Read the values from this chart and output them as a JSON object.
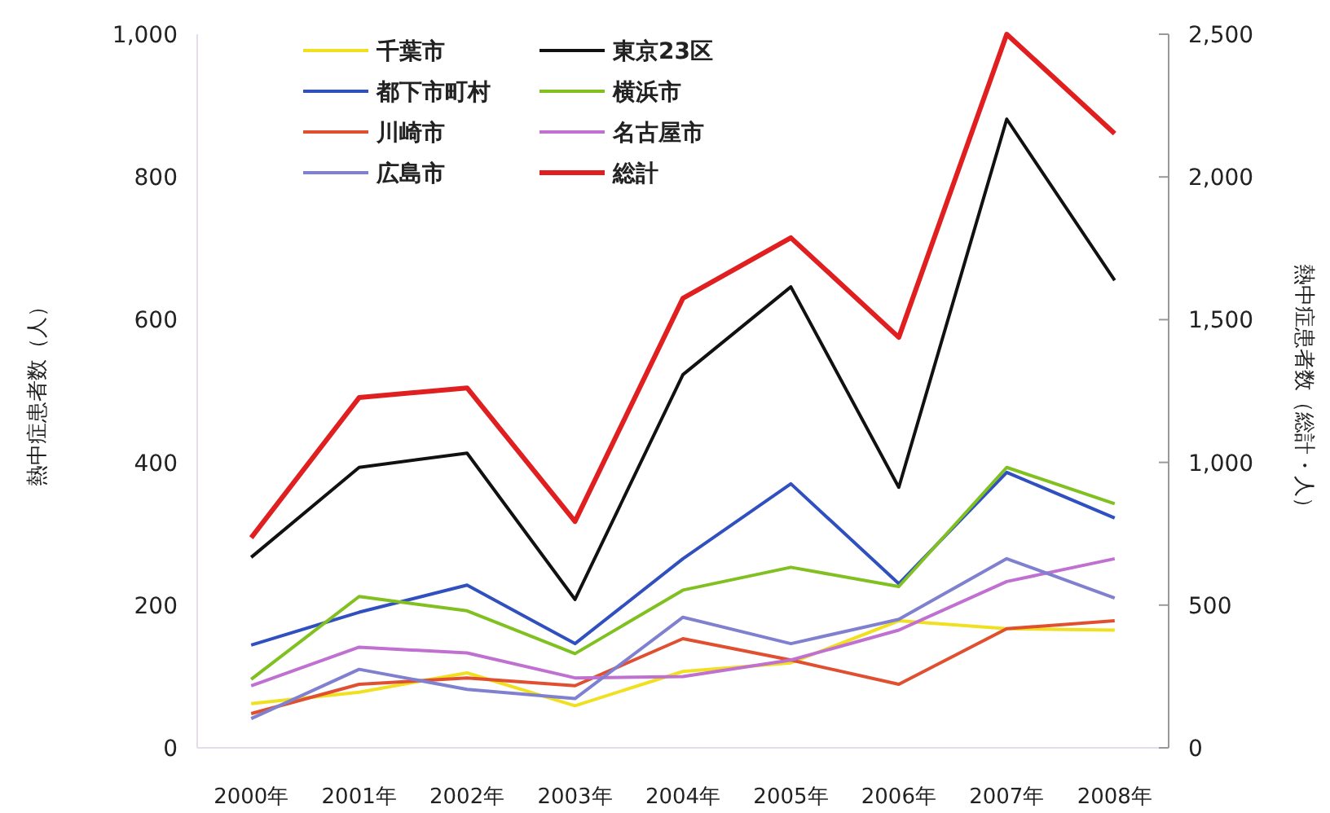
{
  "chart_data": {
    "type": "line",
    "categories": [
      "2000年",
      "2001年",
      "2002年",
      "2003年",
      "2004年",
      "2005年",
      "2006年",
      "2007年",
      "2008年"
    ],
    "ylabel": "熱中症患者数（人）",
    "y2label": "熱中症患者数（総計・人）",
    "ylim": [
      0,
      1000
    ],
    "yticks": [
      {
        "value": 0,
        "label": "0"
      },
      {
        "value": 200,
        "label": "200"
      },
      {
        "value": 400,
        "label": "400"
      },
      {
        "value": 600,
        "label": "600"
      },
      {
        "value": 800,
        "label": "800"
      },
      {
        "value": 1000,
        "label": "1,000"
      }
    ],
    "y2lim": [
      0,
      2500
    ],
    "y2ticks": [
      {
        "value": 0,
        "label": "0"
      },
      {
        "value": 500,
        "label": "500"
      },
      {
        "value": 1000,
        "label": "1,000"
      },
      {
        "value": 1500,
        "label": "1,500"
      },
      {
        "value": 2000,
        "label": "2,000"
      },
      {
        "value": 2500,
        "label": "2,500"
      }
    ],
    "legend": "top left",
    "grid": false,
    "marker": "none",
    "series": [
      {
        "name": "千葉市",
        "color": "#f0e020",
        "values": [
          62,
          78,
          105,
          59,
          107,
          119,
          178,
          167,
          165
        ]
      },
      {
        "name": "東京23区",
        "color": "#111111",
        "values": [
          267,
          393,
          413,
          208,
          523,
          646,
          365,
          881,
          655
        ]
      },
      {
        "name": "都下市町村",
        "color": "#3050c0",
        "values": [
          144,
          190,
          228,
          146,
          265,
          370,
          230,
          386,
          322
        ]
      },
      {
        "name": "横浜市",
        "color": "#80c020",
        "values": [
          96,
          212,
          192,
          132,
          221,
          253,
          226,
          393,
          342
        ]
      },
      {
        "name": "川崎市",
        "color": "#e05030",
        "values": [
          48,
          89,
          98,
          87,
          153,
          123,
          89,
          167,
          178
        ]
      },
      {
        "name": "名古屋市",
        "color": "#c070d0",
        "values": [
          87,
          141,
          133,
          98,
          100,
          123,
          165,
          233,
          265
        ]
      },
      {
        "name": "広島市",
        "color": "#8080d0",
        "values": [
          41,
          110,
          82,
          69,
          183,
          146,
          180,
          265,
          210
        ]
      },
      {
        "name": "総計",
        "color": "#e02020",
        "axis": "y2",
        "values": [
          736,
          1227,
          1261,
          793,
          1575,
          1787,
          1438,
          2500,
          2152
        ]
      }
    ]
  }
}
